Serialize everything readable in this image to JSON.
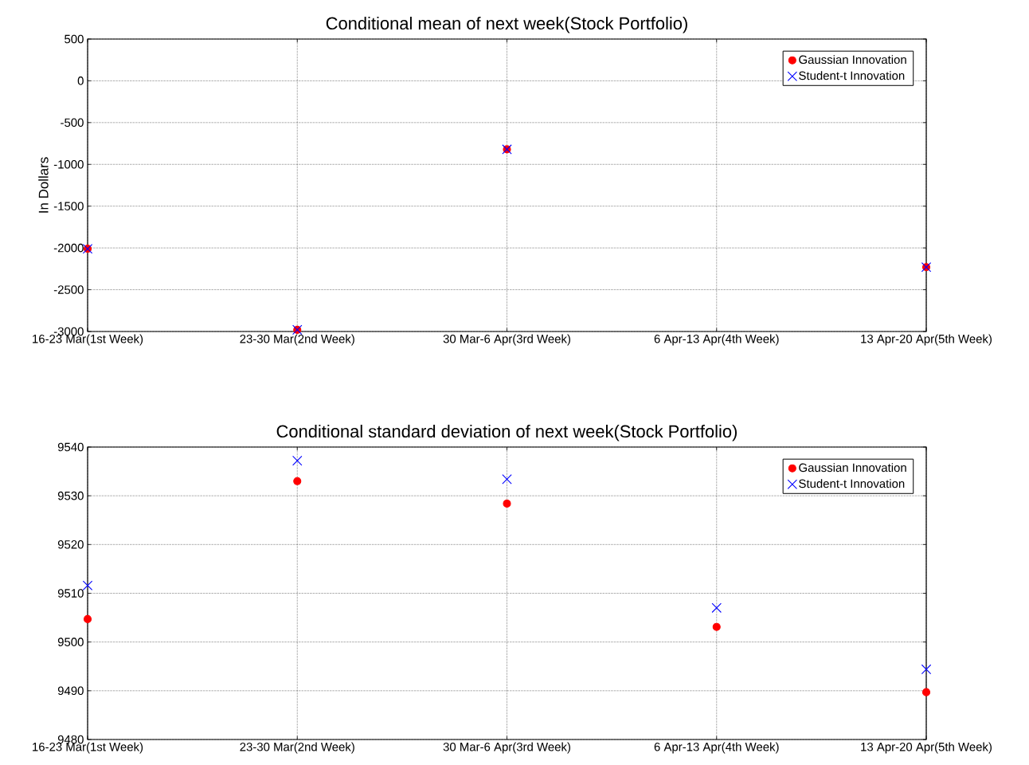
{
  "chart_data": [
    {
      "type": "scatter",
      "title": "Conditional mean of next week(Stock Portfolio)",
      "ylabel": "In Dollars",
      "categories": [
        "16-23 Mar(1st Week)",
        "23-30 Mar(2nd Week)",
        "30 Mar-6 Apr(3rd Week)",
        "6 Apr-13 Apr(4th Week)",
        "13 Apr-20 Apr(5th Week)"
      ],
      "series": [
        {
          "name": "Gaussian Innovation",
          "color": "#ff0000",
          "marker": "circle",
          "values": [
            -2010,
            -2980,
            -820,
            null,
            -2230
          ]
        },
        {
          "name": "Student-t Innovation",
          "color": "#0000ff",
          "marker": "cross",
          "values": [
            -2010,
            -2980,
            -820,
            null,
            -2230
          ]
        }
      ],
      "ylim": [
        -3000,
        500
      ],
      "yticks": [
        -3000,
        -2500,
        -2000,
        -1500,
        -1000,
        -500,
        0,
        500
      ],
      "grid": true,
      "legend": "top right"
    },
    {
      "type": "scatter",
      "title": "Conditional standard deviation of next week(Stock Portfolio)",
      "categories": [
        "16-23 Mar(1st Week)",
        "23-30 Mar(2nd Week)",
        "30 Mar-6 Apr(3rd Week)",
        "6 Apr-13 Apr(4th Week)",
        "13 Apr-20 Apr(5th Week)"
      ],
      "series": [
        {
          "name": "Gaussian Innovation",
          "color": "#ff0000",
          "marker": "circle",
          "values": [
            9504.7,
            9533.0,
            9528.4,
            9503.1,
            9489.7
          ]
        },
        {
          "name": "Student-t Innovation",
          "color": "#0000ff",
          "marker": "cross",
          "values": [
            9511.6,
            9537.2,
            9533.4,
            9507.0,
            9494.4
          ]
        }
      ],
      "ylim": [
        9480,
        9540
      ],
      "yticks": [
        9480,
        9490,
        9500,
        9510,
        9520,
        9530,
        9540
      ],
      "grid": true,
      "legend": "top right"
    }
  ]
}
